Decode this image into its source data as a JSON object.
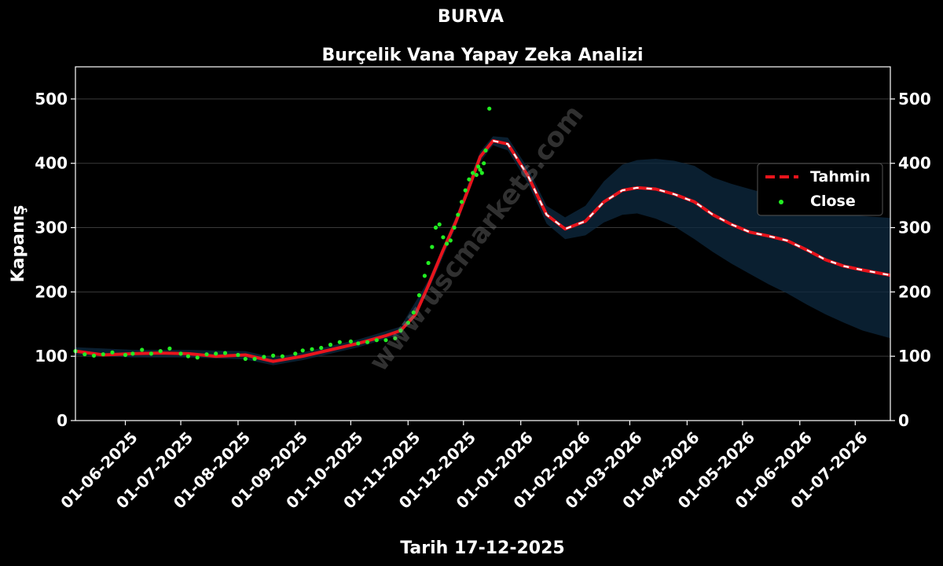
{
  "chart_data": {
    "type": "line",
    "title": "BURVA",
    "subtitle": "Burçelik Vana Yapay Zeka Analizi",
    "xlabel": "Tarih 17-12-2025",
    "ylabel": "Kapanış",
    "ylim": [
      0,
      550
    ],
    "yticks": [
      0,
      100,
      200,
      300,
      400,
      500
    ],
    "x_start": "2025-05-05",
    "x_end": "2026-07-20",
    "xticks": [
      "01-06-2025",
      "01-07-2025",
      "01-08-2025",
      "01-09-2025",
      "01-10-2025",
      "01-11-2025",
      "01-12-2025",
      "01-01-2026",
      "01-02-2026",
      "01-03-2026",
      "01-04-2026",
      "01-05-2026",
      "01-06-2026",
      "01-07-2026"
    ],
    "grid": true,
    "legend": "right",
    "watermark": "www.uscmarkets.com",
    "series": [
      {
        "name": "Tahmin",
        "style": "dashed",
        "color": "#e8141c",
        "x": [
          "2025-05-05",
          "2025-05-20",
          "2025-06-05",
          "2025-06-20",
          "2025-07-05",
          "2025-07-20",
          "2025-08-05",
          "2025-08-20",
          "2025-09-05",
          "2025-09-20",
          "2025-10-05",
          "2025-10-20",
          "2025-10-28",
          "2025-11-05",
          "2025-11-12",
          "2025-11-20",
          "2025-11-27",
          "2025-12-05",
          "2025-12-10",
          "2025-12-17",
          "2025-12-25",
          "2026-01-05",
          "2026-01-15",
          "2026-01-25",
          "2026-02-05",
          "2026-02-15",
          "2026-02-25",
          "2026-03-05",
          "2026-03-15",
          "2026-03-25",
          "2026-04-05",
          "2026-04-15",
          "2026-04-25",
          "2026-05-05",
          "2026-05-15",
          "2026-05-25",
          "2026-06-05",
          "2026-06-15",
          "2026-06-25",
          "2026-07-05",
          "2026-07-20"
        ],
        "values": [
          108,
          102,
          104,
          105,
          104,
          100,
          102,
          92,
          100,
          110,
          120,
          132,
          140,
          165,
          210,
          265,
          310,
          370,
          410,
          435,
          430,
          380,
          320,
          298,
          310,
          340,
          358,
          362,
          360,
          352,
          340,
          320,
          305,
          293,
          287,
          280,
          265,
          250,
          240,
          234,
          226
        ]
      },
      {
        "name": "Close",
        "style": "points",
        "color": "#22ee22",
        "x": [
          "2025-05-05",
          "2025-05-10",
          "2025-05-15",
          "2025-05-20",
          "2025-05-25",
          "2025-06-01",
          "2025-06-05",
          "2025-06-10",
          "2025-06-15",
          "2025-06-20",
          "2025-06-25",
          "2025-07-01",
          "2025-07-05",
          "2025-07-10",
          "2025-07-15",
          "2025-07-20",
          "2025-07-25",
          "2025-08-01",
          "2025-08-05",
          "2025-08-10",
          "2025-08-15",
          "2025-08-20",
          "2025-08-25",
          "2025-09-01",
          "2025-09-05",
          "2025-09-10",
          "2025-09-15",
          "2025-09-20",
          "2025-09-25",
          "2025-10-01",
          "2025-10-05",
          "2025-10-10",
          "2025-10-15",
          "2025-10-20",
          "2025-10-25",
          "2025-10-28",
          "2025-11-01",
          "2025-11-04",
          "2025-11-07",
          "2025-11-10",
          "2025-11-12",
          "2025-11-14",
          "2025-11-16",
          "2025-11-18",
          "2025-11-20",
          "2025-11-22",
          "2025-11-24",
          "2025-11-26",
          "2025-11-28",
          "2025-11-30",
          "2025-12-02",
          "2025-12-04",
          "2025-12-06",
          "2025-12-08",
          "2025-12-09",
          "2025-12-10",
          "2025-12-11",
          "2025-12-12",
          "2025-12-13",
          "2025-12-15"
        ],
        "values": [
          108,
          103,
          101,
          103,
          106,
          102,
          104,
          110,
          104,
          108,
          112,
          104,
          100,
          98,
          103,
          104,
          105,
          102,
          96,
          96,
          99,
          101,
          100,
          104,
          109,
          111,
          113,
          118,
          122,
          123,
          120,
          122,
          125,
          125,
          128,
          140,
          152,
          168,
          195,
          225,
          245,
          270,
          300,
          305,
          285,
          275,
          280,
          300,
          320,
          340,
          358,
          375,
          385,
          382,
          395,
          390,
          385,
          400,
          420,
          485
        ]
      }
    ],
    "band": {
      "x": [
        "2025-05-05",
        "2025-06-05",
        "2025-07-05",
        "2025-08-05",
        "2025-08-20",
        "2025-09-05",
        "2025-10-05",
        "2025-10-28",
        "2025-11-12",
        "2025-11-27",
        "2025-12-10",
        "2025-12-17",
        "2025-12-25",
        "2026-01-05",
        "2026-01-15",
        "2026-01-25",
        "2026-02-05",
        "2026-02-15",
        "2026-02-25",
        "2026-03-05",
        "2026-03-15",
        "2026-03-25",
        "2026-04-05",
        "2026-04-15",
        "2026-04-25",
        "2026-05-05",
        "2026-05-15",
        "2026-05-25",
        "2026-06-05",
        "2026-06-15",
        "2026-06-25",
        "2026-07-05",
        "2026-07-20"
      ],
      "upper": [
        114,
        110,
        110,
        108,
        98,
        106,
        126,
        146,
        218,
        318,
        418,
        442,
        440,
        392,
        334,
        316,
        334,
        372,
        398,
        405,
        407,
        404,
        396,
        378,
        368,
        360,
        352,
        342,
        335,
        326,
        320,
        318,
        315
      ],
      "lower": [
        102,
        98,
        98,
        95,
        86,
        94,
        114,
        134,
        202,
        302,
        402,
        428,
        420,
        368,
        306,
        282,
        288,
        308,
        320,
        322,
        314,
        302,
        282,
        262,
        244,
        228,
        212,
        198,
        180,
        165,
        152,
        140,
        128
      ]
    }
  }
}
